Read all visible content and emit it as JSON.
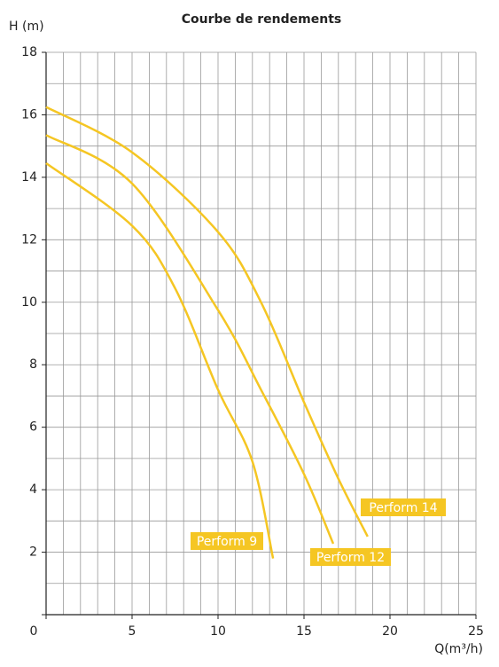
{
  "chart_data": {
    "type": "line",
    "title": "Courbe de rendements",
    "y_label": "H (m)",
    "x_label": "Q(m³/h)",
    "xlim": [
      0,
      25
    ],
    "xticks": [
      0,
      5,
      10,
      15,
      20,
      25
    ],
    "ylim": [
      0,
      18
    ],
    "yticks": [
      0,
      2,
      4,
      6,
      8,
      10,
      12,
      14,
      16,
      18
    ],
    "grid": true,
    "series": [
      {
        "name": "Perform 14",
        "color": "#f5c623",
        "x": [
          0,
          5,
          10,
          12.5,
          15,
          17,
          18.7
        ],
        "values": [
          16.25,
          14.8,
          12.25,
          10.0,
          6.8,
          4.35,
          2.5
        ]
      },
      {
        "name": "Perform 12",
        "color": "#f5c623",
        "x": [
          0,
          5,
          10,
          12.5,
          15,
          16.7
        ],
        "values": [
          15.35,
          13.8,
          9.75,
          7.2,
          4.5,
          2.27
        ]
      },
      {
        "name": "Perform 9",
        "color": "#f5c623",
        "x": [
          0,
          5,
          7.5,
          10,
          12,
          13.2
        ],
        "values": [
          14.45,
          12.45,
          10.45,
          7.2,
          4.9,
          1.8
        ]
      }
    ]
  }
}
